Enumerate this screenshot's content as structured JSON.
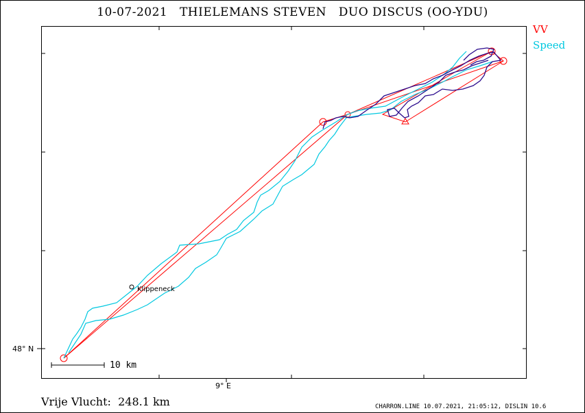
{
  "header": {
    "date": "10-07-2021",
    "pilot": "THIELEMANS STEVEN",
    "glider": "DUO DISCUS (OO-YDU)"
  },
  "legend": {
    "vv_label": "VV",
    "vv_color": "#ff0000",
    "speed_label": "Speed",
    "speed_color": "#00c8e0"
  },
  "axes": {
    "lat_label": "48° N",
    "lon_label": "9° E"
  },
  "scale_bar": {
    "label": "10 km"
  },
  "places": [
    {
      "name": "Klippeneck"
    }
  ],
  "summary": {
    "label": "Vrije Vlucht:",
    "value": "248.1 km"
  },
  "footer": {
    "text": "CHARRON.LINE 10.07.2021, 21:05:12, DISLIN 10.6"
  },
  "colors": {
    "task": "#ff0000",
    "track_speed": "#00c8e0",
    "track_vv": "#2a0a8c"
  }
}
